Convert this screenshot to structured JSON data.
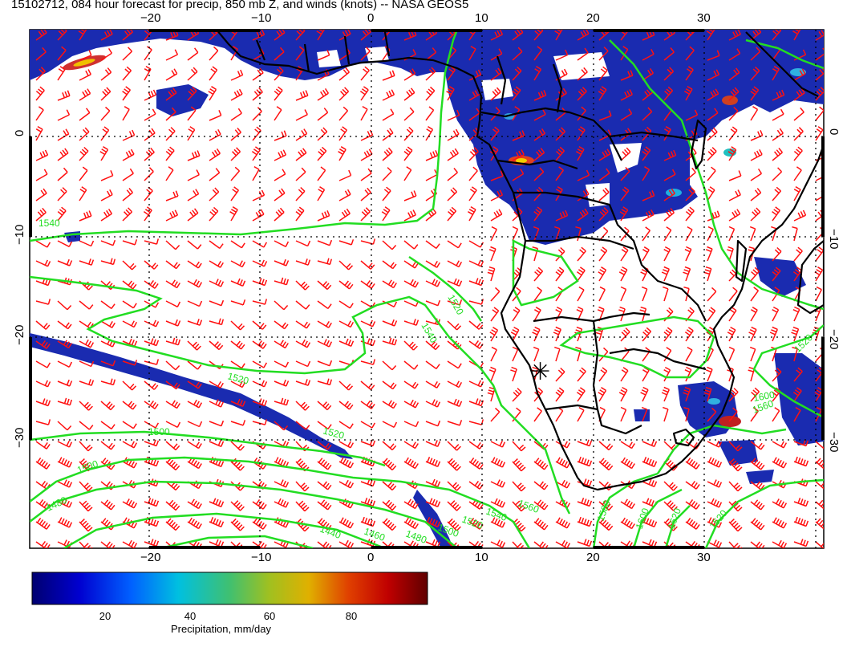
{
  "title": "15102712, 084 hour forecast for precip, 850 mb Z, and winds (knots) -- NASA GEOS5",
  "lon_labels": [
    "−20",
    "−10",
    "0",
    "10",
    "20",
    "30"
  ],
  "lat_labels": [
    "0",
    "−10",
    "−20",
    "−30"
  ],
  "contour_labels": [
    "1540",
    "1520",
    "1540",
    "1520",
    "1500",
    "1520",
    "1500",
    "1480",
    "1440",
    "1460",
    "1480",
    "1500",
    "1520",
    "1540",
    "1560",
    "1580",
    "1600",
    "1620",
    "1520",
    "1560",
    "1600",
    "1520"
  ],
  "colorbar": {
    "label": "Precipitation, mm/day",
    "ticks": [
      "20",
      "40",
      "60",
      "80"
    ],
    "colors": [
      "#000080",
      "#0000ff",
      "#0080ff",
      "#00c8c8",
      "#40c040",
      "#c8c800",
      "#ff8000",
      "#cc0000",
      "#600000"
    ]
  },
  "colors": {
    "precip": "#1a2bb0",
    "contour": "#22dd22",
    "wind": "#ff1010",
    "coast": "#000000"
  },
  "marker": "✳"
}
